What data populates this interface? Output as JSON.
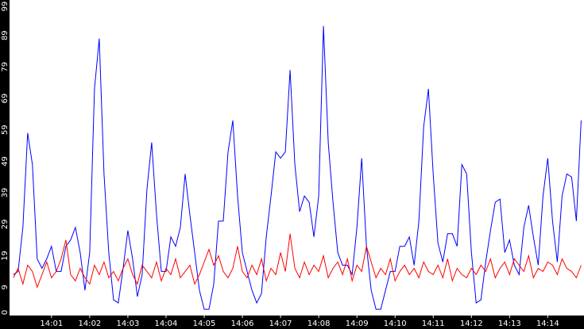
{
  "chart_data": {
    "type": "line",
    "x": [
      840,
      840.125,
      840.25,
      840.375,
      840.5,
      840.625,
      840.75,
      840.875,
      841,
      841.125,
      841.25,
      841.375,
      841.5,
      841.625,
      841.75,
      841.875,
      842,
      842.125,
      842.25,
      842.375,
      842.5,
      842.625,
      842.75,
      842.875,
      843,
      843.125,
      843.25,
      843.375,
      843.5,
      843.625,
      843.75,
      843.875,
      844,
      844.125,
      844.25,
      844.375,
      844.5,
      844.625,
      844.75,
      844.875,
      845,
      845.125,
      845.25,
      845.375,
      845.5,
      845.625,
      845.75,
      845.875,
      846,
      846.125,
      846.25,
      846.375,
      846.5,
      846.625,
      846.75,
      846.875,
      847,
      847.125,
      847.25,
      847.375,
      847.5,
      847.625,
      847.75,
      847.875,
      848,
      848.125,
      848.25,
      848.375,
      848.5,
      848.625,
      848.75,
      848.875,
      849,
      849.125,
      849.25,
      849.375,
      849.5,
      849.625,
      849.75,
      849.875,
      850,
      850.125,
      850.25,
      850.375,
      850.5,
      850.625,
      850.75,
      850.875,
      851,
      851.125,
      851.25,
      851.375,
      851.5,
      851.625,
      851.75,
      851.875,
      852,
      852.125,
      852.25,
      852.375,
      852.5,
      852.625,
      852.75,
      852.875,
      853,
      853.125,
      853.25,
      853.375,
      853.5,
      853.625,
      853.75,
      853.875,
      854,
      854.125,
      854.25,
      854.375,
      854.5,
      854.625,
      854.75,
      854.875
    ],
    "series": [
      {
        "color": "#0000ff",
        "values": [
          13,
          14,
          28,
          58,
          48,
          18,
          15,
          18,
          22,
          14,
          14,
          22,
          24,
          28,
          20,
          8,
          20,
          72,
          88,
          45,
          20,
          5,
          4,
          15,
          27,
          18,
          6,
          13,
          40,
          55,
          32,
          14,
          14,
          25,
          22,
          28,
          45,
          32,
          20,
          8,
          2,
          2,
          10,
          30,
          30,
          52,
          62,
          38,
          20,
          14,
          8,
          4,
          7,
          25,
          38,
          52,
          50,
          52,
          78,
          48,
          33,
          38,
          36,
          25,
          38,
          92,
          55,
          36,
          20,
          16,
          16,
          13,
          28,
          50,
          22,
          8,
          2,
          2,
          8,
          14,
          14,
          22,
          22,
          25,
          16,
          30,
          60,
          72,
          45,
          23,
          17,
          26,
          26,
          22,
          48,
          45,
          20,
          4,
          5,
          17,
          27,
          36,
          37,
          20,
          24,
          16,
          13,
          28,
          35,
          25,
          16,
          38,
          50,
          30,
          17,
          38,
          45,
          44,
          30,
          62
        ]
      },
      {
        "color": "#ff0000",
        "values": [
          12,
          15,
          10,
          16,
          14,
          9,
          13,
          17,
          12,
          14,
          18,
          24,
          13,
          11,
          15,
          12,
          10,
          16,
          13,
          17,
          12,
          14,
          11,
          15,
          18,
          13,
          10,
          16,
          14,
          12,
          17,
          11,
          15,
          13,
          18,
          12,
          14,
          16,
          10,
          13,
          17,
          21,
          16,
          19,
          14,
          12,
          15,
          22,
          14,
          12,
          16,
          13,
          18,
          11,
          15,
          13,
          20,
          14,
          26,
          15,
          12,
          17,
          13,
          16,
          14,
          19,
          12,
          15,
          17,
          13,
          18,
          11,
          16,
          14,
          22,
          17,
          12,
          15,
          13,
          18,
          11,
          14,
          16,
          13,
          15,
          12,
          17,
          14,
          13,
          16,
          12,
          18,
          11,
          15,
          13,
          12,
          15,
          13,
          16,
          14,
          18,
          12,
          15,
          17,
          13,
          18,
          16,
          14,
          19,
          12,
          15,
          14,
          17,
          16,
          13,
          18,
          15,
          14,
          12,
          16
        ]
      }
    ],
    "xlim": [
      839.9,
      854.95
    ],
    "xticks": [
      {
        "value": 841,
        "label": "14:01"
      },
      {
        "value": 842,
        "label": "14:02"
      },
      {
        "value": 843,
        "label": "14:03"
      },
      {
        "value": 844,
        "label": "14:04"
      },
      {
        "value": 845,
        "label": "14:05"
      },
      {
        "value": 846,
        "label": "14:06"
      },
      {
        "value": 847,
        "label": "14:07"
      },
      {
        "value": 848,
        "label": "14:08"
      },
      {
        "value": 849,
        "label": "14:09"
      },
      {
        "value": 850,
        "label": "14:10"
      },
      {
        "value": 851,
        "label": "14:11"
      },
      {
        "value": 852,
        "label": "14:12"
      },
      {
        "value": 853,
        "label": "14:13"
      },
      {
        "value": 854,
        "label": "14:14"
      }
    ],
    "ylim": [
      0,
      99
    ],
    "yticks": [
      0,
      9,
      19,
      29,
      39,
      49,
      59,
      69,
      79,
      89,
      99
    ]
  }
}
